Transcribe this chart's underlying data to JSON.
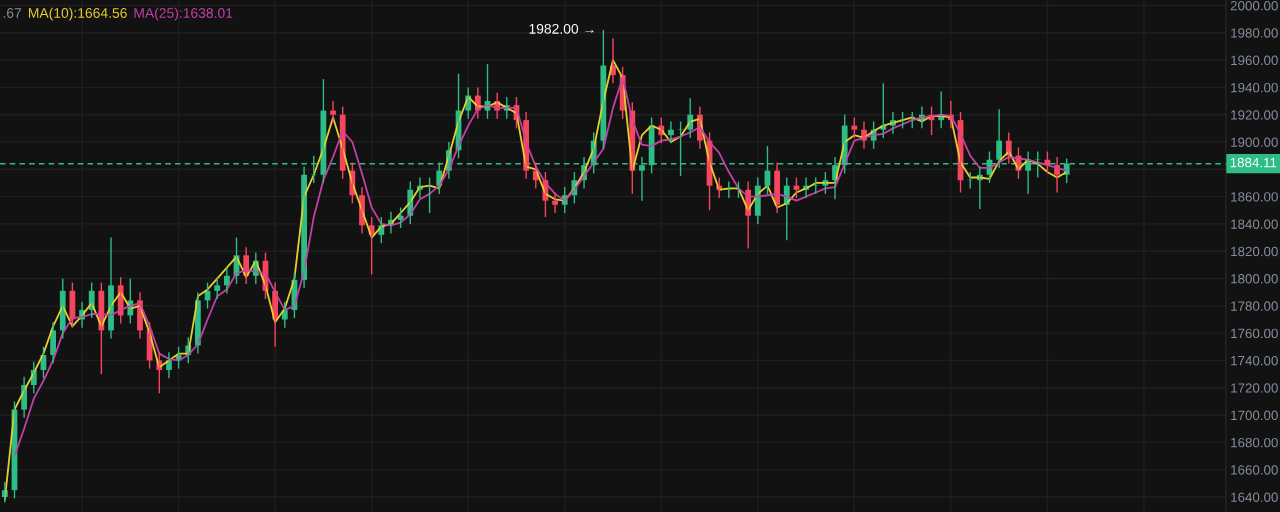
{
  "chart_data": {
    "type": "candlestick",
    "categories": [
      null,
      null,
      null,
      null,
      null,
      null,
      null,
      null,
      null,
      null,
      null,
      null,
      null,
      null,
      null,
      null,
      null,
      null,
      null,
      null,
      null,
      null,
      null,
      null,
      null,
      null,
      null,
      null,
      null,
      null,
      null,
      null,
      null,
      null,
      null,
      null,
      null,
      null,
      null,
      null,
      null,
      null,
      null,
      null,
      null,
      null,
      null,
      null,
      null,
      null,
      null,
      null,
      null,
      null,
      null,
      null,
      null,
      null,
      null,
      null,
      null,
      null,
      null,
      null,
      null,
      null,
      null,
      null,
      null,
      null,
      null,
      null,
      null,
      null,
      null,
      null,
      null,
      null,
      null,
      null,
      null,
      null,
      null,
      null,
      null,
      null,
      null,
      null,
      null,
      null,
      null,
      null,
      null,
      null,
      null,
      null,
      null,
      null,
      null,
      null,
      null,
      null,
      null,
      null,
      null,
      null,
      null,
      null,
      null,
      null,
      null,
      null,
      null,
      null,
      null,
      null,
      null,
      null,
      null,
      null,
      null,
      null,
      null,
      null,
      null,
      null,
      null
    ],
    "ohlc": [
      [
        1640,
        1651,
        1636,
        1645
      ],
      [
        1645,
        1710,
        1639,
        1704
      ],
      [
        1704,
        1728,
        1698,
        1722
      ],
      [
        1722,
        1739,
        1716,
        1733
      ],
      [
        1733,
        1750,
        1727,
        1744
      ],
      [
        1744,
        1768,
        1738,
        1762
      ],
      [
        1762,
        1800,
        1756,
        1791
      ],
      [
        1791,
        1797,
        1764,
        1770
      ],
      [
        1770,
        1783,
        1764,
        1777
      ],
      [
        1777,
        1797,
        1771,
        1791
      ],
      [
        1791,
        1797,
        1730,
        1762
      ],
      [
        1762,
        1830,
        1756,
        1795
      ],
      [
        1795,
        1801,
        1767,
        1773
      ],
      [
        1773,
        1800,
        1767,
        1784
      ],
      [
        1784,
        1790,
        1756,
        1762
      ],
      [
        1762,
        1768,
        1734,
        1740
      ],
      [
        1740,
        1746,
        1716,
        1733
      ],
      [
        1733,
        1746,
        1727,
        1740
      ],
      [
        1740,
        1750,
        1734,
        1744
      ],
      [
        1744,
        1757,
        1738,
        1751
      ],
      [
        1751,
        1790,
        1745,
        1784
      ],
      [
        1784,
        1797,
        1778,
        1791
      ],
      [
        1791,
        1801,
        1785,
        1795
      ],
      [
        1795,
        1808,
        1789,
        1802
      ],
      [
        1802,
        1830,
        1796,
        1817
      ],
      [
        1817,
        1823,
        1796,
        1802
      ],
      [
        1802,
        1819,
        1796,
        1813
      ],
      [
        1813,
        1819,
        1785,
        1791
      ],
      [
        1791,
        1797,
        1750,
        1770
      ],
      [
        1770,
        1783,
        1764,
        1777
      ],
      [
        1777,
        1805,
        1771,
        1799
      ],
      [
        1799,
        1882,
        1793,
        1876
      ],
      [
        1876,
        1890,
        1870,
        1876
      ],
      [
        1876,
        1946,
        1870,
        1923
      ],
      [
        1923,
        1930,
        1914,
        1920
      ],
      [
        1920,
        1926,
        1873,
        1879
      ],
      [
        1879,
        1885,
        1855,
        1861
      ],
      [
        1861,
        1867,
        1833,
        1839
      ],
      [
        1839,
        1845,
        1803,
        1832
      ],
      [
        1832,
        1845,
        1826,
        1839
      ],
      [
        1839,
        1849,
        1833,
        1843
      ],
      [
        1843,
        1852,
        1837,
        1846
      ],
      [
        1846,
        1871,
        1840,
        1865
      ],
      [
        1865,
        1874,
        1859,
        1868
      ],
      [
        1868,
        1874,
        1848,
        1868
      ],
      [
        1868,
        1885,
        1862,
        1879
      ],
      [
        1879,
        1900,
        1873,
        1894
      ],
      [
        1894,
        1950,
        1888,
        1923
      ],
      [
        1923,
        1940,
        1917,
        1934
      ],
      [
        1934,
        1940,
        1917,
        1923
      ],
      [
        1923,
        1957,
        1917,
        1930
      ],
      [
        1930,
        1936,
        1917,
        1923
      ],
      [
        1923,
        1933,
        1917,
        1927
      ],
      [
        1927,
        1933,
        1910,
        1916
      ],
      [
        1916,
        1922,
        1873,
        1879
      ],
      [
        1879,
        1885,
        1866,
        1872
      ],
      [
        1872,
        1878,
        1845,
        1857
      ],
      [
        1857,
        1863,
        1848,
        1854
      ],
      [
        1854,
        1867,
        1848,
        1861
      ],
      [
        1861,
        1878,
        1855,
        1872
      ],
      [
        1872,
        1889,
        1866,
        1883
      ],
      [
        1883,
        1907,
        1877,
        1901
      ],
      [
        1901,
        1982,
        1895,
        1956
      ],
      [
        1956,
        1976,
        1943,
        1949
      ],
      [
        1949,
        1955,
        1917,
        1923
      ],
      [
        1923,
        1929,
        1862,
        1879
      ],
      [
        1879,
        1889,
        1857,
        1883
      ],
      [
        1883,
        1918,
        1877,
        1912
      ],
      [
        1912,
        1918,
        1899,
        1905
      ],
      [
        1905,
        1915,
        1899,
        1909
      ],
      [
        1909,
        1915,
        1875,
        1909
      ],
      [
        1909,
        1932,
        1903,
        1920
      ],
      [
        1920,
        1926,
        1895,
        1901
      ],
      [
        1901,
        1907,
        1850,
        1868
      ],
      [
        1868,
        1874,
        1859,
        1865
      ],
      [
        1865,
        1871,
        1859,
        1865
      ],
      [
        1865,
        1871,
        1859,
        1865
      ],
      [
        1865,
        1871,
        1822,
        1846
      ],
      [
        1846,
        1874,
        1840,
        1868
      ],
      [
        1868,
        1897,
        1862,
        1879
      ],
      [
        1879,
        1885,
        1848,
        1854
      ],
      [
        1854,
        1874,
        1828,
        1868
      ],
      [
        1868,
        1874,
        1859,
        1865
      ],
      [
        1865,
        1874,
        1859,
        1868
      ],
      [
        1868,
        1874,
        1862,
        1868
      ],
      [
        1868,
        1878,
        1862,
        1872
      ],
      [
        1872,
        1889,
        1858,
        1883
      ],
      [
        1883,
        1920,
        1877,
        1912
      ],
      [
        1912,
        1918,
        1903,
        1909
      ],
      [
        1909,
        1915,
        1895,
        1901
      ],
      [
        1901,
        1915,
        1895,
        1909
      ],
      [
        1909,
        1943,
        1903,
        1912
      ],
      [
        1912,
        1922,
        1906,
        1916
      ],
      [
        1916,
        1922,
        1910,
        1916
      ],
      [
        1916,
        1922,
        1910,
        1916
      ],
      [
        1916,
        1926,
        1910,
        1920
      ],
      [
        1920,
        1926,
        1905,
        1916
      ],
      [
        1916,
        1937,
        1910,
        1920
      ],
      [
        1920,
        1930,
        1910,
        1916
      ],
      [
        1916,
        1922,
        1863,
        1872
      ],
      [
        1872,
        1878,
        1866,
        1872
      ],
      [
        1872,
        1882,
        1851,
        1876
      ],
      [
        1876,
        1893,
        1870,
        1887
      ],
      [
        1887,
        1924,
        1881,
        1901
      ],
      [
        1901,
        1907,
        1884,
        1890
      ],
      [
        1890,
        1896,
        1873,
        1879
      ],
      [
        1879,
        1893,
        1862,
        1887
      ],
      [
        1887,
        1893,
        1874,
        1887
      ],
      [
        1887,
        1893,
        1877,
        1883
      ],
      [
        1883,
        1889,
        1863,
        1876
      ],
      [
        1876,
        1888,
        1870,
        1884.11
      ],
      null,
      null,
      null,
      null,
      null,
      null,
      null,
      null,
      null,
      null,
      null,
      null,
      null,
      null,
      null,
      null
    ],
    "series": [
      {
        "type": "line",
        "name": "MA(10):1664.56",
        "color": "#e6cf2c",
        "values": [
          1638,
          1704,
          1718,
          1731,
          1745,
          1765,
          1780,
          1765,
          1773,
          1782,
          1765,
          1780,
          1790,
          1778,
          1780,
          1760,
          1735,
          1740,
          1745,
          1745,
          1787,
          1792,
          1800,
          1808,
          1816,
          1801,
          1813,
          1795,
          1768,
          1778,
          1800,
          1860,
          1876,
          1895,
          1918,
          1895,
          1870,
          1850,
          1830,
          1838,
          1840,
          1848,
          1856,
          1867,
          1868,
          1866,
          1890,
          1915,
          1933,
          1926,
          1926,
          1929,
          1925,
          1921,
          1882,
          1880,
          1862,
          1858,
          1857,
          1866,
          1878,
          1895,
          1930,
          1960,
          1947,
          1879,
          1905,
          1912,
          1909,
          1900,
          1904,
          1915,
          1917,
          1885,
          1865,
          1866,
          1866,
          1850,
          1862,
          1868,
          1852,
          1855,
          1863,
          1866,
          1870,
          1870,
          1870,
          1900,
          1905,
          1903,
          1908,
          1912,
          1914,
          1916,
          1918,
          1915,
          1919,
          1919,
          1918,
          1885,
          1874,
          1874,
          1873,
          1886,
          1893,
          1880,
          1887,
          1884,
          1878,
          1874,
          1878,
          null,
          null,
          null,
          null,
          null,
          null,
          null,
          null,
          null,
          null,
          null,
          null,
          null,
          null,
          null,
          null
        ]
      },
      {
        "type": "line",
        "name": "MA(25):1638.01",
        "color": "#c43fa7",
        "values": [
          null,
          1670,
          1690,
          1712,
          1725,
          1740,
          1760,
          1771,
          1772,
          1774,
          1774,
          1773,
          1777,
          1780,
          1782,
          1765,
          1745,
          1741,
          1740,
          1744,
          1752,
          1770,
          1787,
          1792,
          1804,
          1806,
          1805,
          1804,
          1790,
          1777,
          1780,
          1805,
          1845,
          1872,
          1889,
          1908,
          1900,
          1877,
          1852,
          1840,
          1839,
          1841,
          1847,
          1858,
          1862,
          1868,
          1880,
          1897,
          1912,
          1924,
          1927,
          1925,
          1925,
          1925,
          1900,
          1882,
          1870,
          1862,
          1857,
          1865,
          1875,
          1885,
          1895,
          1925,
          1947,
          1916,
          1898,
          1897,
          1901,
          1902,
          1904,
          1907,
          1911,
          1900,
          1892,
          1878,
          1866,
          1860,
          1860,
          1861,
          1862,
          1860,
          1857,
          1860,
          1863,
          1866,
          1867,
          1884,
          1901,
          1903,
          1905,
          1906,
          1910,
          1913,
          1916,
          1918,
          1919,
          1920,
          1919,
          1906,
          1890,
          1881,
          1881,
          1885,
          1889,
          1888,
          1887,
          1885,
          1883,
          1881,
          1879,
          null,
          null,
          null,
          null,
          null,
          null,
          null,
          null,
          null,
          null,
          null,
          null,
          null,
          null,
          null,
          null
        ]
      }
    ],
    "ylim": [
      1629,
      2004
    ],
    "yticks": [
      {
        "value": 1640,
        "label": "1640.00"
      },
      {
        "value": 1660,
        "label": "1660.00"
      },
      {
        "value": 1680,
        "label": "1680.00"
      },
      {
        "value": 1700,
        "label": "1700.00"
      },
      {
        "value": 1720,
        "label": "1720.00"
      },
      {
        "value": 1740,
        "label": "1740.00"
      },
      {
        "value": 1760,
        "label": "1760.00"
      },
      {
        "value": 1780,
        "label": "1780.00"
      },
      {
        "value": 1800,
        "label": "1800.00"
      },
      {
        "value": 1820,
        "label": "1820.00"
      },
      {
        "value": 1840,
        "label": "1840.00"
      },
      {
        "value": 1860,
        "label": "1860.00"
      },
      {
        "value": 1880,
        "label": null
      },
      {
        "value": 1900,
        "label": "1900.00"
      },
      {
        "value": 1920,
        "label": "1920.00"
      },
      {
        "value": 1940,
        "label": "1940.00"
      },
      {
        "value": 1960,
        "label": "1960.00"
      },
      {
        "value": 1980,
        "label": "1980.00"
      },
      {
        "value": 2000,
        "label": "2000.00"
      }
    ],
    "tick_labels": "y",
    "grid": true,
    "ref_lines": [
      {
        "axis": "y",
        "value": 1884.11,
        "label": "1884.11",
        "color": "#2ebd85",
        "line_style": "dashed"
      }
    ],
    "annotations": [
      ".67",
      "1982.00 →"
    ]
  }
}
